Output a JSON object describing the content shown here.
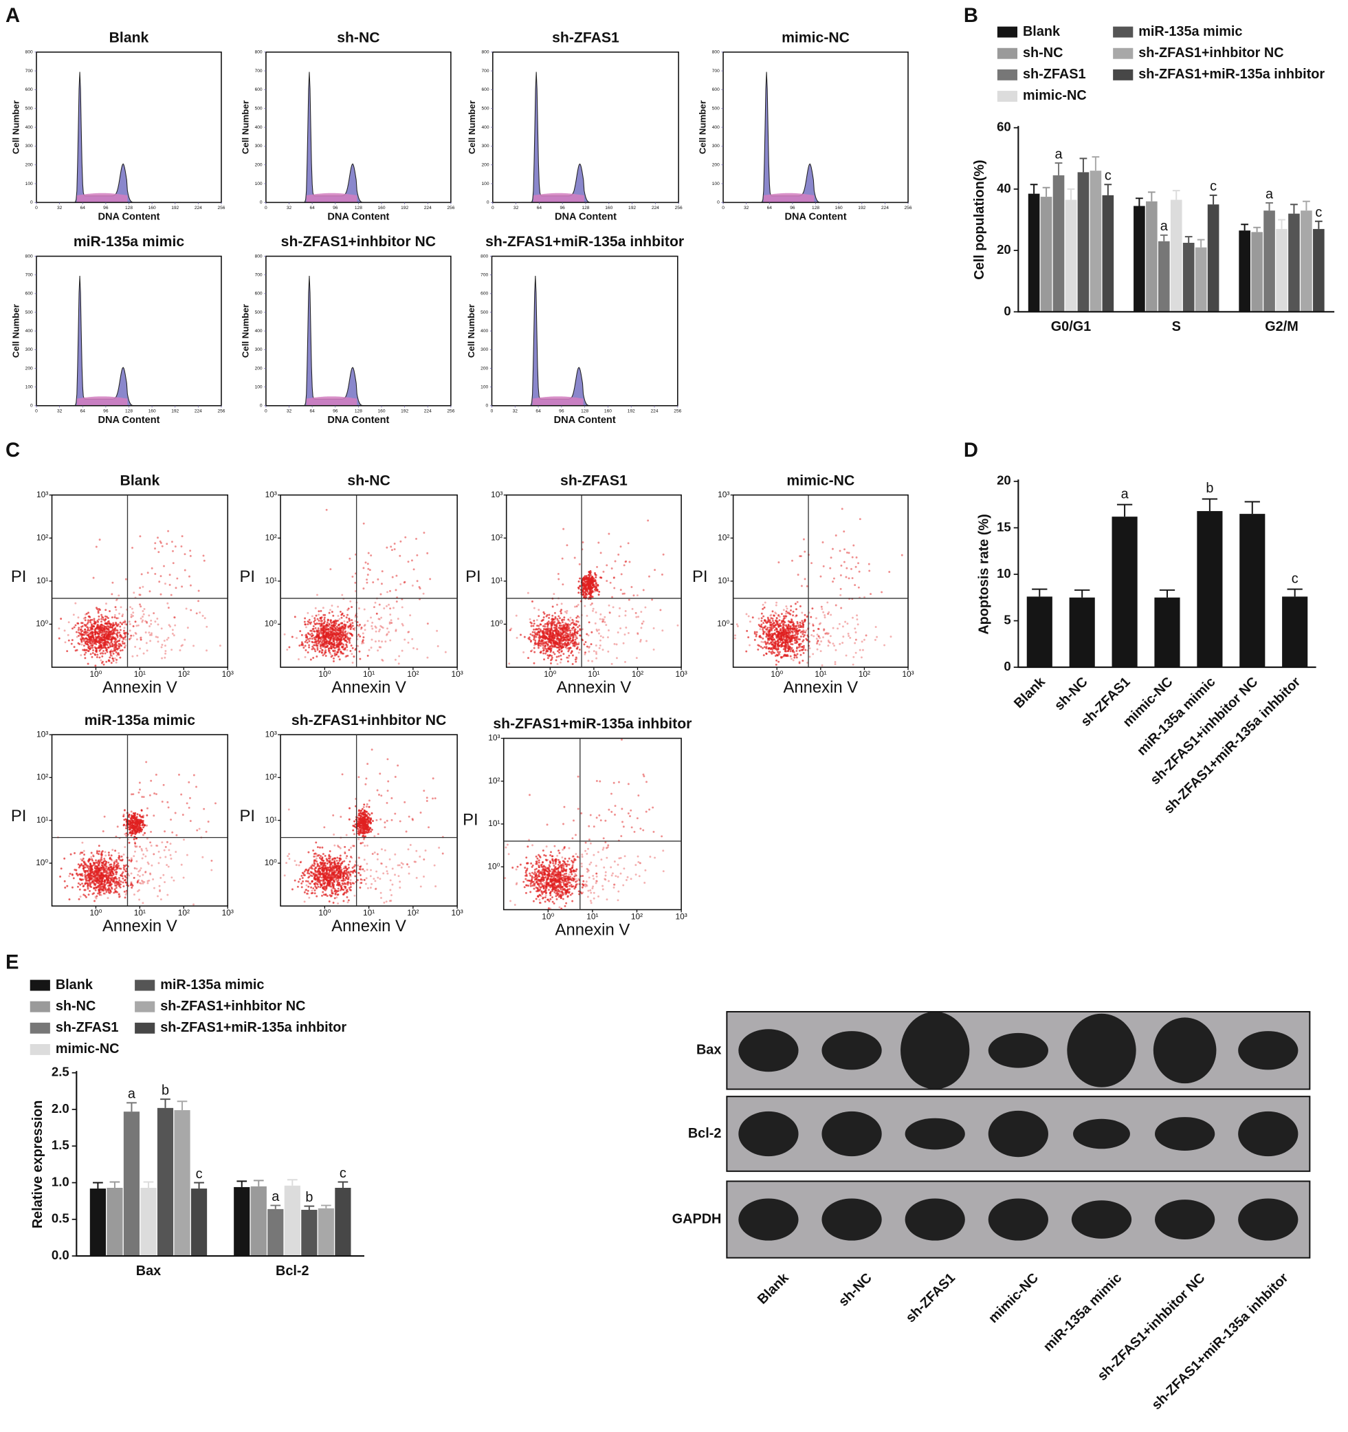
{
  "panel_labels": [
    "A",
    "B",
    "C",
    "D",
    "E"
  ],
  "chart_data": [
    {
      "type": "flow-histogram",
      "title": "Blank",
      "xlabel": "DNA Content",
      "ylabel": "Cell Number",
      "xlim": [
        0,
        256
      ],
      "xticks": [
        0,
        32,
        64,
        96,
        128,
        160,
        192,
        224,
        256
      ],
      "ylim": [
        0,
        800
      ],
      "yticks": [
        0,
        100,
        200,
        300,
        400,
        500,
        600,
        700,
        800
      ]
    },
    {
      "type": "flow-histogram",
      "title": "sh-NC",
      "xlabel": "DNA Content",
      "ylabel": "Cell Number",
      "xlim": [
        0,
        256
      ],
      "xticks": [
        0,
        32,
        64,
        96,
        128,
        160,
        192,
        224,
        256
      ],
      "ylim": [
        0,
        800
      ],
      "yticks": [
        0,
        100,
        200,
        300,
        400,
        500,
        600,
        700,
        800
      ]
    },
    {
      "type": "flow-histogram",
      "title": "sh-ZFAS1",
      "xlabel": "DNA Content",
      "ylabel": "Cell Number",
      "xlim": [
        0,
        256
      ],
      "xticks": [
        0,
        32,
        64,
        96,
        128,
        160,
        192,
        224,
        256
      ],
      "ylim": [
        0,
        800
      ],
      "yticks": [
        0,
        100,
        200,
        300,
        400,
        500,
        600,
        700,
        800
      ]
    },
    {
      "type": "flow-histogram",
      "title": "mimic-NC",
      "xlabel": "DNA Content",
      "ylabel": "Cell Number",
      "xlim": [
        0,
        256
      ],
      "xticks": [
        0,
        32,
        64,
        96,
        128,
        160,
        192,
        224,
        256
      ],
      "ylim": [
        0,
        800
      ],
      "yticks": [
        0,
        100,
        200,
        300,
        400,
        500,
        600,
        700,
        800
      ]
    },
    {
      "type": "flow-histogram",
      "title": "miR-135a mimic",
      "xlabel": "DNA Content",
      "ylabel": "Cell Number",
      "xlim": [
        0,
        256
      ],
      "xticks": [
        0,
        32,
        64,
        96,
        128,
        160,
        192,
        224,
        256
      ],
      "ylim": [
        0,
        800
      ],
      "yticks": [
        0,
        100,
        200,
        300,
        400,
        500,
        600,
        700,
        800
      ]
    },
    {
      "type": "flow-histogram",
      "title": "sh-ZFAS1+inhbitor NC",
      "xlabel": "DNA Content",
      "ylabel": "Cell Number",
      "xlim": [
        0,
        256
      ],
      "xticks": [
        0,
        32,
        64,
        96,
        128,
        160,
        192,
        224,
        256
      ],
      "ylim": [
        0,
        800
      ],
      "yticks": [
        0,
        100,
        200,
        300,
        400,
        500,
        600,
        700,
        800
      ]
    },
    {
      "type": "flow-histogram",
      "title": "sh-ZFAS1+miR-135a inhbitor",
      "xlabel": "DNA Content",
      "ylabel": "Cell Number",
      "xlim": [
        0,
        256
      ],
      "xticks": [
        0,
        32,
        64,
        96,
        128,
        160,
        192,
        224,
        256
      ],
      "ylim": [
        0,
        800
      ],
      "yticks": [
        0,
        100,
        200,
        300,
        400,
        500,
        600,
        700,
        800
      ]
    },
    {
      "type": "grouped-bar",
      "ylabel": "Cell population(%)",
      "categories": [
        "G0/G1",
        "S",
        "G2/M"
      ],
      "ylim": [
        0,
        60
      ],
      "yticks": [
        0,
        20,
        40,
        60
      ],
      "series": [
        {
          "name": "Blank",
          "color": "#151515",
          "values": [
            38.5,
            34.5,
            26.5
          ],
          "errors": [
            3,
            2.5,
            2
          ]
        },
        {
          "name": "sh-NC",
          "color": "#9a9a9a",
          "values": [
            37.5,
            36,
            26
          ],
          "errors": [
            3,
            3,
            1.5
          ]
        },
        {
          "name": "sh-ZFAS1",
          "color": "#777777",
          "values": [
            44.5,
            23,
            33
          ],
          "errors": [
            4,
            2,
            2.5
          ],
          "significance": [
            "a",
            "a",
            "a"
          ]
        },
        {
          "name": "mimic-NC",
          "color": "#dcdcdc",
          "values": [
            36.5,
            36.5,
            27
          ],
          "errors": [
            3.5,
            3,
            3
          ]
        },
        {
          "name": "miR-135a mimic",
          "color": "#555555",
          "values": [
            45.5,
            22.5,
            32
          ],
          "errors": [
            4.5,
            2,
            3
          ]
        },
        {
          "name": "sh-ZFAS1+inhbitor NC",
          "color": "#a8a8a8",
          "values": [
            46,
            21,
            33
          ],
          "errors": [
            4.5,
            2.5,
            3
          ]
        },
        {
          "name": "sh-ZFAS1+miR-135a inhbitor",
          "color": "#474747",
          "values": [
            38,
            35,
            27
          ],
          "errors": [
            3.5,
            3,
            2.5
          ],
          "significance": [
            "c",
            "c",
            "c"
          ]
        }
      ]
    },
    {
      "type": "flow-scatter",
      "title": "Blank",
      "xlabel": "Annexin V",
      "ylabel": "PI",
      "log": true,
      "xlim": [
        0.1,
        1000
      ],
      "ylim": [
        0.1,
        1000
      ],
      "xticks": [
        {
          "value": 1,
          "label": "10⁰"
        },
        {
          "value": 10,
          "label": "10¹"
        },
        {
          "value": 100,
          "label": "10²"
        },
        {
          "value": 1000,
          "label": "10³"
        }
      ],
      "yticks": [
        {
          "value": 1,
          "label": "10⁰"
        },
        {
          "value": 10,
          "label": "10¹"
        },
        {
          "value": 100,
          "label": "10²"
        },
        {
          "value": 1000,
          "label": "10³"
        }
      ]
    },
    {
      "type": "flow-scatter",
      "title": "sh-NC",
      "xlabel": "Annexin V",
      "ylabel": "PI",
      "log": true,
      "xlim": [
        0.1,
        1000
      ],
      "ylim": [
        0.1,
        1000
      ],
      "xticks": [
        {
          "value": 1,
          "label": "10⁰"
        },
        {
          "value": 10,
          "label": "10¹"
        },
        {
          "value": 100,
          "label": "10²"
        },
        {
          "value": 1000,
          "label": "10³"
        }
      ],
      "yticks": [
        {
          "value": 1,
          "label": "10⁰"
        },
        {
          "value": 10,
          "label": "10¹"
        },
        {
          "value": 100,
          "label": "10²"
        },
        {
          "value": 1000,
          "label": "10³"
        }
      ]
    },
    {
      "type": "flow-scatter",
      "title": "sh-ZFAS1",
      "xlabel": "Annexin V",
      "ylabel": "PI",
      "log": true,
      "xlim": [
        0.1,
        1000
      ],
      "ylim": [
        0.1,
        1000
      ],
      "xticks": [
        {
          "value": 1,
          "label": "10⁰"
        },
        {
          "value": 10,
          "label": "10¹"
        },
        {
          "value": 100,
          "label": "10²"
        },
        {
          "value": 1000,
          "label": "10³"
        }
      ],
      "yticks": [
        {
          "value": 1,
          "label": "10⁰"
        },
        {
          "value": 10,
          "label": "10¹"
        },
        {
          "value": 100,
          "label": "10²"
        },
        {
          "value": 1000,
          "label": "10³"
        }
      ]
    },
    {
      "type": "flow-scatter",
      "title": "mimic-NC",
      "xlabel": "Annexin V",
      "ylabel": "PI",
      "log": true,
      "xlim": [
        0.1,
        1000
      ],
      "ylim": [
        0.1,
        1000
      ],
      "xticks": [
        {
          "value": 1,
          "label": "10⁰"
        },
        {
          "value": 10,
          "label": "10¹"
        },
        {
          "value": 100,
          "label": "10²"
        },
        {
          "value": 1000,
          "label": "10³"
        }
      ],
      "yticks": [
        {
          "value": 1,
          "label": "10⁰"
        },
        {
          "value": 10,
          "label": "10¹"
        },
        {
          "value": 100,
          "label": "10²"
        },
        {
          "value": 1000,
          "label": "10³"
        }
      ]
    },
    {
      "type": "flow-scatter",
      "title": "miR-135a mimic",
      "xlabel": "Annexin V",
      "ylabel": "PI",
      "log": true,
      "xlim": [
        0.1,
        1000
      ],
      "ylim": [
        0.1,
        1000
      ],
      "xticks": [
        {
          "value": 1,
          "label": "10⁰"
        },
        {
          "value": 10,
          "label": "10¹"
        },
        {
          "value": 100,
          "label": "10²"
        },
        {
          "value": 1000,
          "label": "10³"
        }
      ],
      "yticks": [
        {
          "value": 1,
          "label": "10⁰"
        },
        {
          "value": 10,
          "label": "10¹"
        },
        {
          "value": 100,
          "label": "10²"
        },
        {
          "value": 1000,
          "label": "10³"
        }
      ]
    },
    {
      "type": "flow-scatter",
      "title": "sh-ZFAS1+inhbitor NC",
      "xlabel": "Annexin V",
      "ylabel": "PI",
      "log": true,
      "xlim": [
        0.1,
        1000
      ],
      "ylim": [
        0.1,
        1000
      ],
      "xticks": [
        {
          "value": 1,
          "label": "10⁰"
        },
        {
          "value": 10,
          "label": "10¹"
        },
        {
          "value": 100,
          "label": "10²"
        },
        {
          "value": 1000,
          "label": "10³"
        }
      ],
      "yticks": [
        {
          "value": 1,
          "label": "10⁰"
        },
        {
          "value": 10,
          "label": "10¹"
        },
        {
          "value": 100,
          "label": "10²"
        },
        {
          "value": 1000,
          "label": "10³"
        }
      ]
    },
    {
      "type": "flow-scatter",
      "title": "sh-ZFAS1+miR-135a inhbitor",
      "xlabel": "Annexin V",
      "ylabel": "PI",
      "log": true,
      "xlim": [
        0.1,
        1000
      ],
      "ylim": [
        0.1,
        1000
      ],
      "xticks": [
        {
          "value": 1,
          "label": "10⁰"
        },
        {
          "value": 10,
          "label": "10¹"
        },
        {
          "value": 100,
          "label": "10²"
        },
        {
          "value": 1000,
          "label": "10³"
        }
      ],
      "yticks": [
        {
          "value": 1,
          "label": "10⁰"
        },
        {
          "value": 10,
          "label": "10¹"
        },
        {
          "value": 100,
          "label": "10²"
        },
        {
          "value": 1000,
          "label": "10³"
        }
      ]
    },
    {
      "type": "bar",
      "ylabel": "Apoptosis rate (%)",
      "categories": [
        "Blank",
        "sh-NC",
        "sh-ZFAS1",
        "mimic-NC",
        "miR-135a mimic",
        "sh-ZFAS1+inhbitor NC",
        "sh-ZFAS1+miR-135a inhbitor"
      ],
      "values": [
        7.6,
        7.5,
        16.2,
        7.5,
        16.8,
        16.5,
        7.6
      ],
      "errors": [
        0.8,
        0.8,
        1.3,
        0.8,
        1.3,
        1.3,
        0.8
      ],
      "significance": [
        null,
        null,
        "a",
        null,
        "b",
        null,
        "c"
      ],
      "color": "#151515",
      "ylim": [
        0,
        20
      ],
      "yticks": [
        0,
        5,
        10,
        15,
        20
      ]
    },
    {
      "type": "grouped-bar",
      "ylabel": "Relative expression",
      "categories": [
        "Bax",
        "Bcl-2"
      ],
      "ylim": [
        0,
        2.5
      ],
      "yticks": [
        {
          "value": 0,
          "label": "0.0"
        },
        {
          "value": 0.5,
          "label": "0.5"
        },
        {
          "value": 1,
          "label": "1.0"
        },
        {
          "value": 1.5,
          "label": "1.5"
        },
        {
          "value": 2,
          "label": "2.0"
        },
        {
          "value": 2.5,
          "label": "2.5"
        }
      ],
      "series": [
        {
          "name": "Blank",
          "color": "#151515",
          "values": [
            0.92,
            0.94
          ],
          "errors": [
            0.08,
            0.08
          ]
        },
        {
          "name": "sh-NC",
          "color": "#9a9a9a",
          "values": [
            0.93,
            0.95
          ],
          "errors": [
            0.08,
            0.08
          ]
        },
        {
          "name": "sh-ZFAS1",
          "color": "#777777",
          "values": [
            1.97,
            0.64
          ],
          "errors": [
            0.12,
            0.05
          ],
          "significance": [
            "a",
            "a"
          ]
        },
        {
          "name": "mimic-NC",
          "color": "#dcdcdc",
          "values": [
            0.93,
            0.96
          ],
          "errors": [
            0.08,
            0.08
          ]
        },
        {
          "name": "miR-135a mimic",
          "color": "#555555",
          "values": [
            2.02,
            0.63
          ],
          "errors": [
            0.12,
            0.05
          ],
          "significance": [
            "b",
            "b"
          ]
        },
        {
          "name": "sh-ZFAS1+inhbitor NC",
          "color": "#a8a8a8",
          "values": [
            1.99,
            0.65
          ],
          "errors": [
            0.12,
            0.04
          ]
        },
        {
          "name": "sh-ZFAS1+miR-135a inhbitor",
          "color": "#474747",
          "values": [
            0.92,
            0.93
          ],
          "errors": [
            0.08,
            0.08
          ],
          "significance": [
            "c",
            "c"
          ]
        }
      ]
    }
  ],
  "blot": {
    "rows": [
      "Bax",
      "Bcl-2",
      "GAPDH"
    ],
    "lanes": [
      "Blank",
      "sh-NC",
      "sh-ZFAS1",
      "mimic-NC",
      "miR-135a mimic",
      "sh-ZFAS1+inhbitor NC",
      "sh-ZFAS1+miR-135a inhbitor"
    ]
  }
}
